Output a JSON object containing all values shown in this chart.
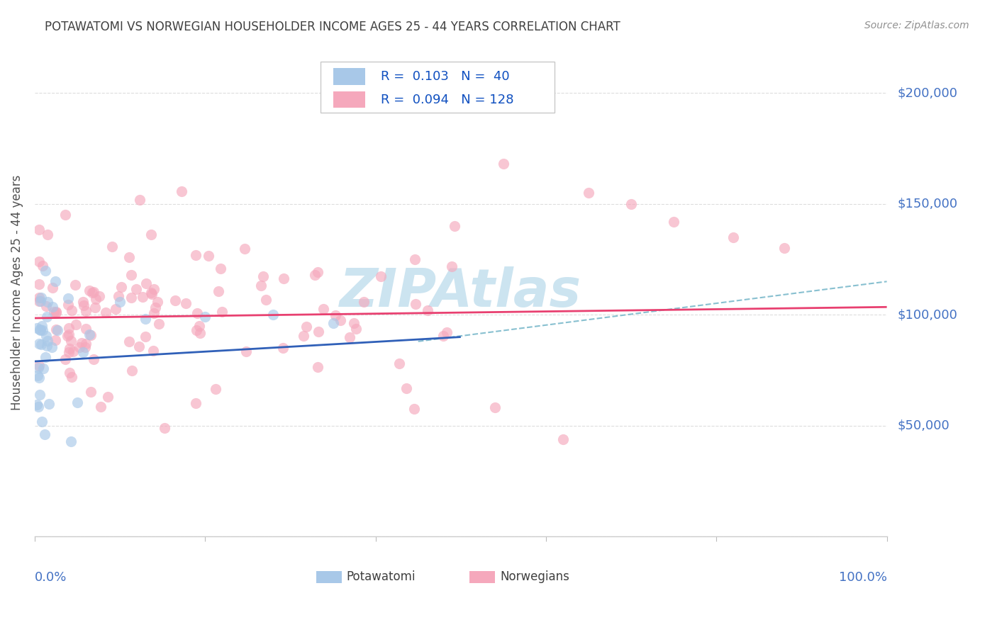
{
  "title": "POTAWATOMI VS NORWEGIAN HOUSEHOLDER INCOME AGES 25 - 44 YEARS CORRELATION CHART",
  "source": "Source: ZipAtlas.com",
  "ylabel": "Householder Income Ages 25 - 44 years",
  "xlim": [
    0.0,
    1.0
  ],
  "ylim": [
    0,
    220000
  ],
  "yticks": [
    0,
    50000,
    100000,
    150000,
    200000
  ],
  "ytick_labels": [
    "",
    "$50,000",
    "$100,000",
    "$150,000",
    "$200,000"
  ],
  "r_potawatomi": 0.103,
  "n_potawatomi": 40,
  "r_norwegian": 0.094,
  "n_norwegian": 128,
  "color_potawatomi_fill": "#a8c8e8",
  "color_norwegian_fill": "#f5a8bc",
  "color_line_potawatomi": "#3060b8",
  "color_line_norwegian": "#e84070",
  "color_line_dashed": "#88c0d0",
  "background_color": "#ffffff",
  "grid_color": "#dddddd",
  "title_color": "#404040",
  "source_color": "#909090",
  "axis_label_color": "#4472c4",
  "legend_text_color": "#1050c0",
  "watermark_color": "#cce4f0",
  "marker_size": 120,
  "marker_alpha": 0.65,
  "legend_box_color": "#f0f0f0"
}
